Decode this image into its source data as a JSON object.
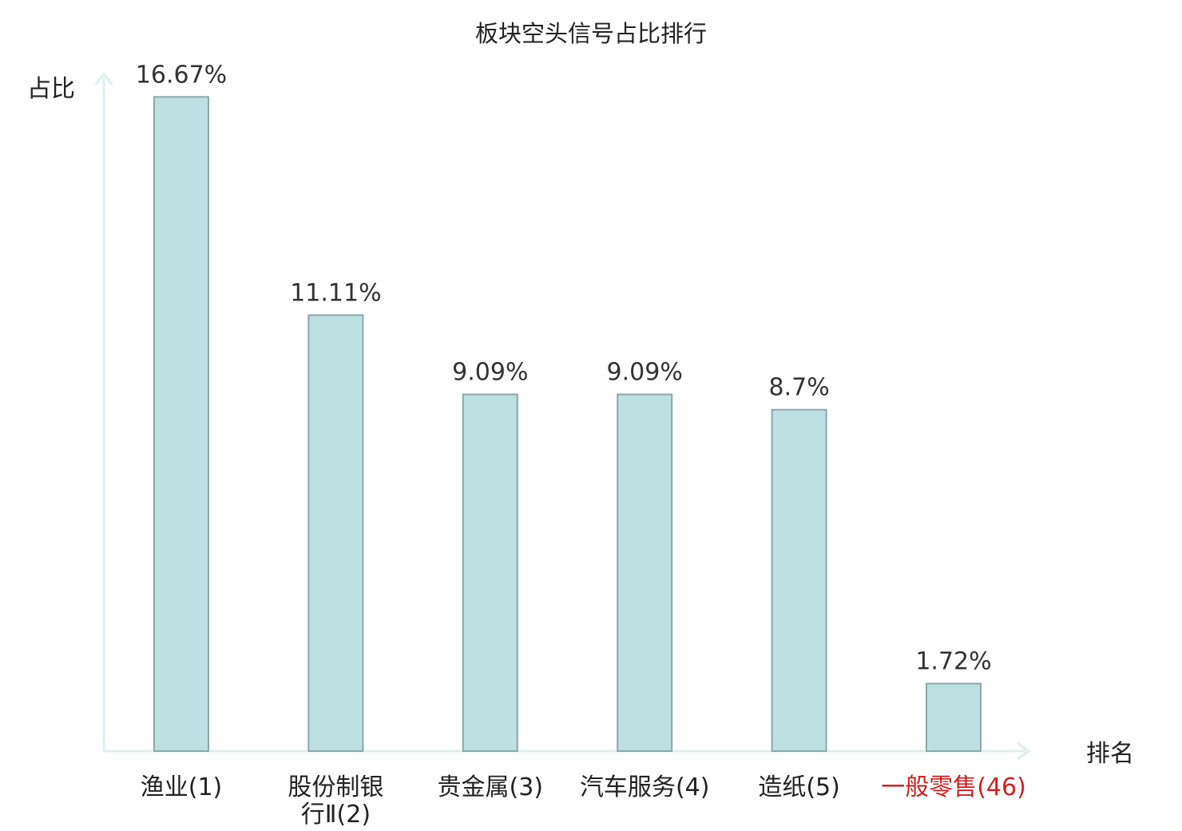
{
  "chart_data": {
    "type": "bar",
    "title": "板块空头信号占比排行",
    "ylabel": "占比",
    "xlabel": "排名",
    "categories": [
      {
        "name": "渔业",
        "rank": "(1)",
        "highlight": false
      },
      {
        "name": "股份制银",
        "name2": "行Ⅱ",
        "rank": "(2)",
        "highlight": false
      },
      {
        "name": "贵金属",
        "rank": "(3)",
        "highlight": false
      },
      {
        "name": "汽车服务",
        "rank": "(4)",
        "highlight": false
      },
      {
        "name": "造纸",
        "rank": "(5)",
        "highlight": false
      },
      {
        "name": "一般零售",
        "rank": "(46)",
        "highlight": true
      }
    ],
    "values": [
      16.67,
      11.11,
      9.09,
      9.09,
      8.7,
      1.72
    ],
    "value_labels": [
      "16.67%",
      "11.11%",
      "9.09%",
      "9.09%",
      "8.7%",
      "1.72%"
    ],
    "ylim": [
      0,
      18
    ],
    "grid": false,
    "colors": {
      "bar_fill": "#bde0e3",
      "bar_stroke": "#8aa8aa",
      "axis": "#dcefec",
      "highlight_text": "#d42020"
    }
  }
}
